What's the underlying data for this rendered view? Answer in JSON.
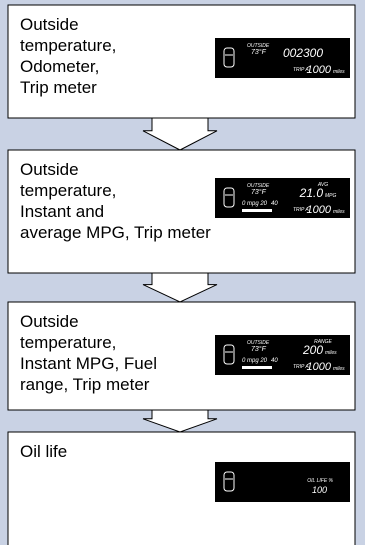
{
  "panels": [
    {
      "lines": [
        "Outside",
        "temperature,",
        "Odometer,",
        "Trip meter"
      ],
      "display": {
        "outside_label": "OUTSIDE",
        "outside_temp": "73°F",
        "top_value": "002300",
        "trip_label": "TRIP A",
        "trip_value": "1000",
        "trip_unit": "miles"
      }
    },
    {
      "lines": [
        "Outside",
        "temperature,",
        "Instant and",
        "average MPG, Trip meter"
      ],
      "display": {
        "outside_label": "OUTSIDE",
        "outside_temp": "73°F",
        "top_label": "AVG",
        "top_value": "21.0",
        "top_unit": "MPG",
        "bar_scale": "0 mpg 20",
        "bar_scale_end": "40",
        "trip_label": "TRIP A",
        "trip_value": "1000",
        "trip_unit": "miles"
      }
    },
    {
      "lines": [
        "Outside",
        "temperature,",
        "Instant MPG, Fuel",
        "range, Trip meter"
      ],
      "display": {
        "outside_label": "OUTSIDE",
        "outside_temp": "73°F",
        "top_label": "RANGE",
        "top_value": "200",
        "top_unit": "miles",
        "bar_scale": "0 mpg 20",
        "bar_scale_end": "40",
        "trip_label": "TRIP A",
        "trip_value": "1000",
        "trip_unit": "miles"
      }
    },
    {
      "lines": [
        "Oil life"
      ],
      "display": {
        "top_label": "OIL LIFE %",
        "top_value": "100"
      }
    }
  ]
}
